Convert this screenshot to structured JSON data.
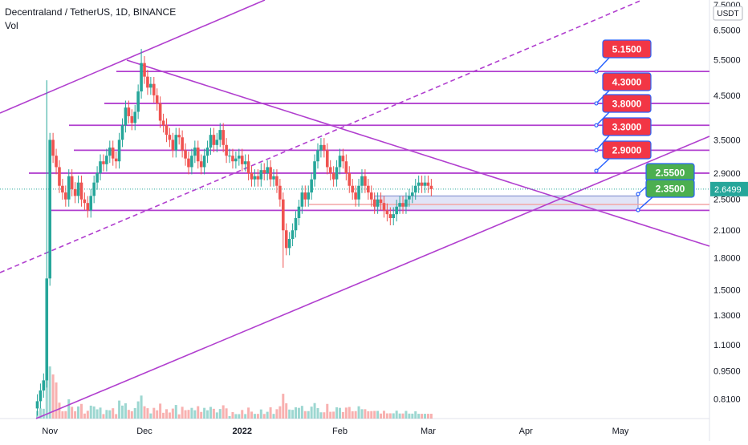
{
  "header": {
    "symbol_line": "Decentraland / TetherUS, 1D, BINANCE",
    "indicator": "Vol"
  },
  "chart_data": {
    "type": "candlestick",
    "title": "Decentraland / TetherUS, 1D, BINANCE",
    "currency": "USDT",
    "y_scale": "log",
    "ylim": [
      0.75,
      7.5
    ],
    "y_ticks": [
      "7.5000",
      "6.5000",
      "5.5000",
      "4.5000",
      "3.5000",
      "2.9000",
      "2.5000",
      "2.1000",
      "1.8000",
      "1.5000",
      "1.3000",
      "1.1000",
      "0.9500",
      "0.8100"
    ],
    "x_ticks": [
      "Nov",
      "Dec",
      "2022",
      "Feb",
      "Mar",
      "Apr",
      "May"
    ],
    "last_price": "2.6499",
    "horizontal_levels": [
      {
        "value": 5.15,
        "label": "5.1500",
        "color": "#f23645"
      },
      {
        "value": 4.3,
        "label": "4.3000",
        "color": "#f23645"
      },
      {
        "value": 3.8,
        "label": "3.8000",
        "color": "#f23645"
      },
      {
        "value": 3.3,
        "label": "3.3000",
        "color": "#f23645"
      },
      {
        "value": 2.9,
        "label": "2.9000",
        "color": "#f23645"
      },
      {
        "value": 2.55,
        "label": "2.5500",
        "color": "#4caf50"
      },
      {
        "value": 2.35,
        "label": "2.3500",
        "color": "#4caf50"
      }
    ],
    "colors": {
      "up": "#26a69a",
      "down": "#ef5350",
      "drawing": "#b13fcf",
      "price_line": "#26a69a",
      "zone": "#c9cdf0"
    },
    "candles": {
      "start": "2021-10-28",
      "interval": "1D",
      "close": [
        0.8,
        0.85,
        0.9,
        1.6,
        3.5,
        3.2,
        3.0,
        2.7,
        2.6,
        2.5,
        2.85,
        2.65,
        2.55,
        2.75,
        2.5,
        2.45,
        2.35,
        2.55,
        2.75,
        2.9,
        3.1,
        3.05,
        3.2,
        3.35,
        3.15,
        3.1,
        3.5,
        3.8,
        4.2,
        4.0,
        3.85,
        4.1,
        4.6,
        5.4,
        5.0,
        4.7,
        4.8,
        4.5,
        4.3,
        3.9,
        3.8,
        3.6,
        3.5,
        3.3,
        3.6,
        3.55,
        3.3,
        3.15,
        3.0,
        3.2,
        3.35,
        3.1,
        3.0,
        3.2,
        3.35,
        3.6,
        3.4,
        3.5,
        3.7,
        3.4,
        3.2,
        3.2,
        3.1,
        3.15,
        3.2,
        3.05,
        3.1,
        2.9,
        2.8,
        2.85,
        2.8,
        2.95,
        2.9,
        3.0,
        2.8,
        2.85,
        2.7,
        2.5,
        2.1,
        1.9,
        2.0,
        2.1,
        2.25,
        2.4,
        2.6,
        2.5,
        2.6,
        2.8,
        3.1,
        3.3,
        3.4,
        3.3,
        3.0,
        2.9,
        2.8,
        3.0,
        3.2,
        3.1,
        2.9,
        2.7,
        2.6,
        2.5,
        2.7,
        2.85,
        2.7,
        2.6,
        2.5,
        2.4,
        2.5,
        2.45,
        2.35,
        2.3,
        2.25,
        2.3,
        2.4,
        2.45,
        2.4,
        2.5,
        2.55,
        2.6,
        2.7,
        2.75,
        2.7,
        2.75,
        2.7,
        2.65
      ]
    }
  }
}
